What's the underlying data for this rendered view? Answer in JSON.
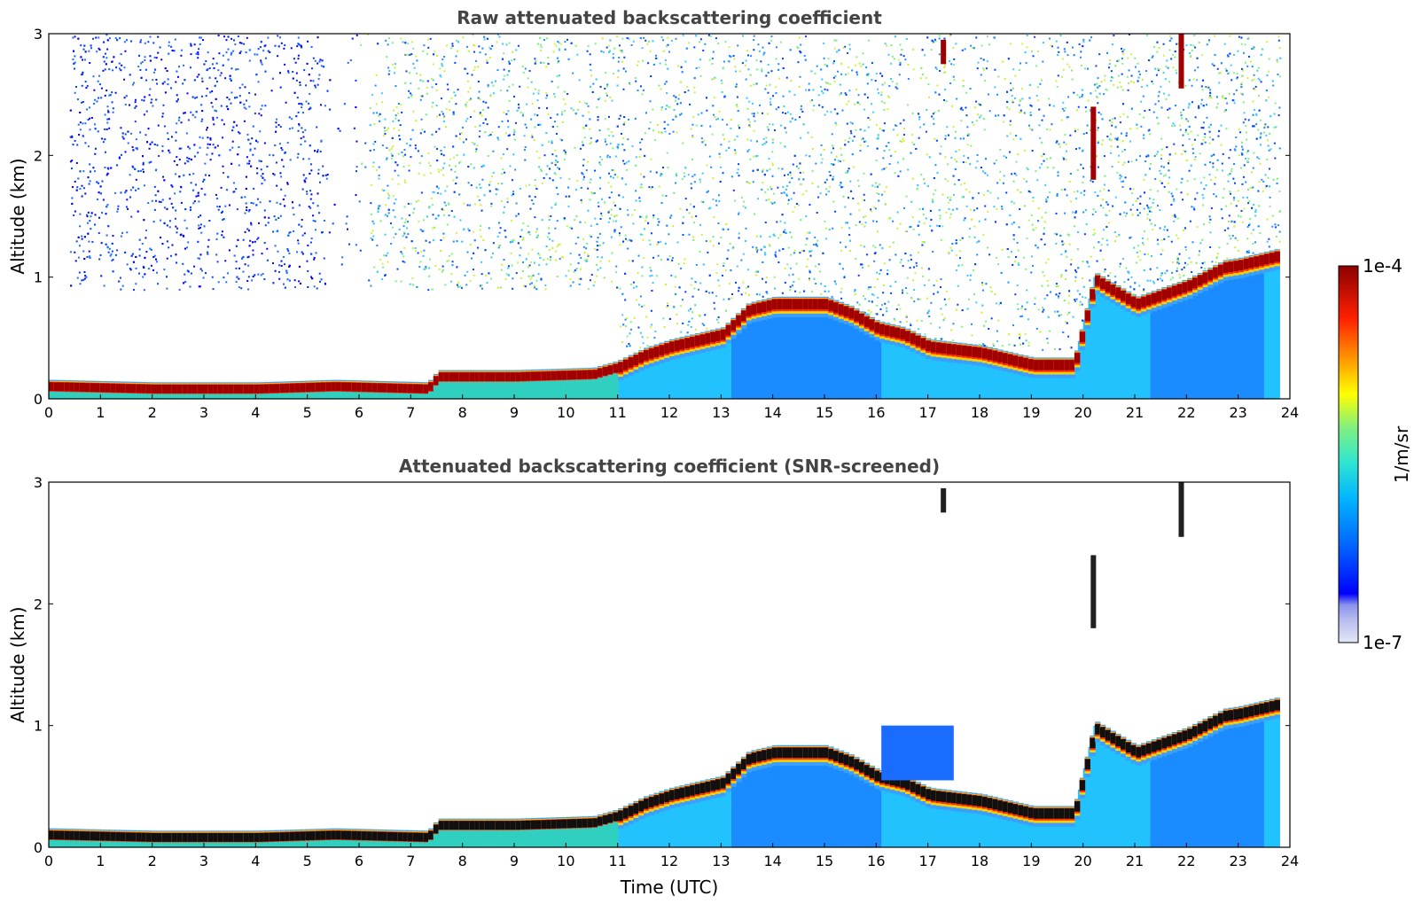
{
  "chart_data": [
    {
      "type": "heatmap",
      "title": "Raw attenuated backscattering coefficient",
      "xlabel": "",
      "ylabel": "Altitude (km)",
      "xlim": [
        0,
        24
      ],
      "ylim": [
        0,
        3
      ],
      "xticks": [
        "0",
        "1",
        "2",
        "3",
        "4",
        "5",
        "6",
        "7",
        "8",
        "9",
        "10",
        "11",
        "12",
        "13",
        "14",
        "15",
        "16",
        "17",
        "18",
        "19",
        "20",
        "21",
        "22",
        "23",
        "24"
      ],
      "yticks": [
        "0",
        "1",
        "2",
        "3"
      ],
      "noise": "high",
      "boundary_layer_top_km": [
        {
          "t": 0,
          "h": 0.12
        },
        {
          "t": 2,
          "h": 0.1
        },
        {
          "t": 4,
          "h": 0.1
        },
        {
          "t": 5.5,
          "h": 0.12
        },
        {
          "t": 7.3,
          "h": 0.1
        },
        {
          "t": 7.5,
          "h": 0.2
        },
        {
          "t": 9,
          "h": 0.2
        },
        {
          "t": 10.5,
          "h": 0.22
        },
        {
          "t": 11,
          "h": 0.28
        },
        {
          "t": 11.5,
          "h": 0.38
        },
        {
          "t": 12,
          "h": 0.45
        },
        {
          "t": 12.5,
          "h": 0.5
        },
        {
          "t": 13,
          "h": 0.55
        },
        {
          "t": 13.5,
          "h": 0.75
        },
        {
          "t": 14,
          "h": 0.8
        },
        {
          "t": 15,
          "h": 0.8
        },
        {
          "t": 15.5,
          "h": 0.72
        },
        {
          "t": 16,
          "h": 0.6
        },
        {
          "t": 16.5,
          "h": 0.55
        },
        {
          "t": 17,
          "h": 0.45
        },
        {
          "t": 18,
          "h": 0.4
        },
        {
          "t": 19,
          "h": 0.3
        },
        {
          "t": 19.8,
          "h": 0.3
        },
        {
          "t": 20.2,
          "h": 1.0
        },
        {
          "t": 21,
          "h": 0.8
        },
        {
          "t": 22,
          "h": 0.95
        },
        {
          "t": 22.7,
          "h": 1.1
        },
        {
          "t": 23,
          "h": 1.12
        },
        {
          "t": 23.8,
          "h": 1.2
        }
      ],
      "aerosol_below_layer": [
        {
          "t_start": 11,
          "t_end": 23.8
        }
      ],
      "clouds": [
        {
          "t": 17.3,
          "h_low": 2.75,
          "h_high": 2.95
        },
        {
          "t": 21.9,
          "h_low": 2.55,
          "h_high": 3.0
        },
        {
          "t": 20.2,
          "h_low": 1.8,
          "h_high": 2.4
        }
      ]
    },
    {
      "type": "heatmap",
      "title": "Attenuated backscattering coefficient (SNR-screened)",
      "xlabel": "Time (UTC)",
      "ylabel": "Altitude (km)",
      "xlim": [
        0,
        24
      ],
      "ylim": [
        0,
        3
      ],
      "xticks": [
        "0",
        "1",
        "2",
        "3",
        "4",
        "5",
        "6",
        "7",
        "8",
        "9",
        "10",
        "11",
        "12",
        "13",
        "14",
        "15",
        "16",
        "17",
        "18",
        "19",
        "20",
        "21",
        "22",
        "23",
        "24"
      ],
      "yticks": [
        "0",
        "1",
        "2",
        "3"
      ],
      "noise": "screened",
      "blue_patch": {
        "t_start": 16.1,
        "t_end": 17.5,
        "h_low": 0.55,
        "h_high": 1.0
      }
    }
  ],
  "colorbar": {
    "label": "1/m/sr",
    "max_label": "1e-4",
    "min_label": "1e-7",
    "colors": [
      "#e4e6f7",
      "#b8bdf0",
      "#8a92ec",
      "#3a44f2",
      "#0000ff",
      "#0050ff",
      "#0090ff",
      "#00c8ff",
      "#30e6d0",
      "#80f080",
      "#d0f040",
      "#ffff00",
      "#ffc000",
      "#ff7000",
      "#ff2000",
      "#d00000",
      "#8b0000"
    ]
  }
}
